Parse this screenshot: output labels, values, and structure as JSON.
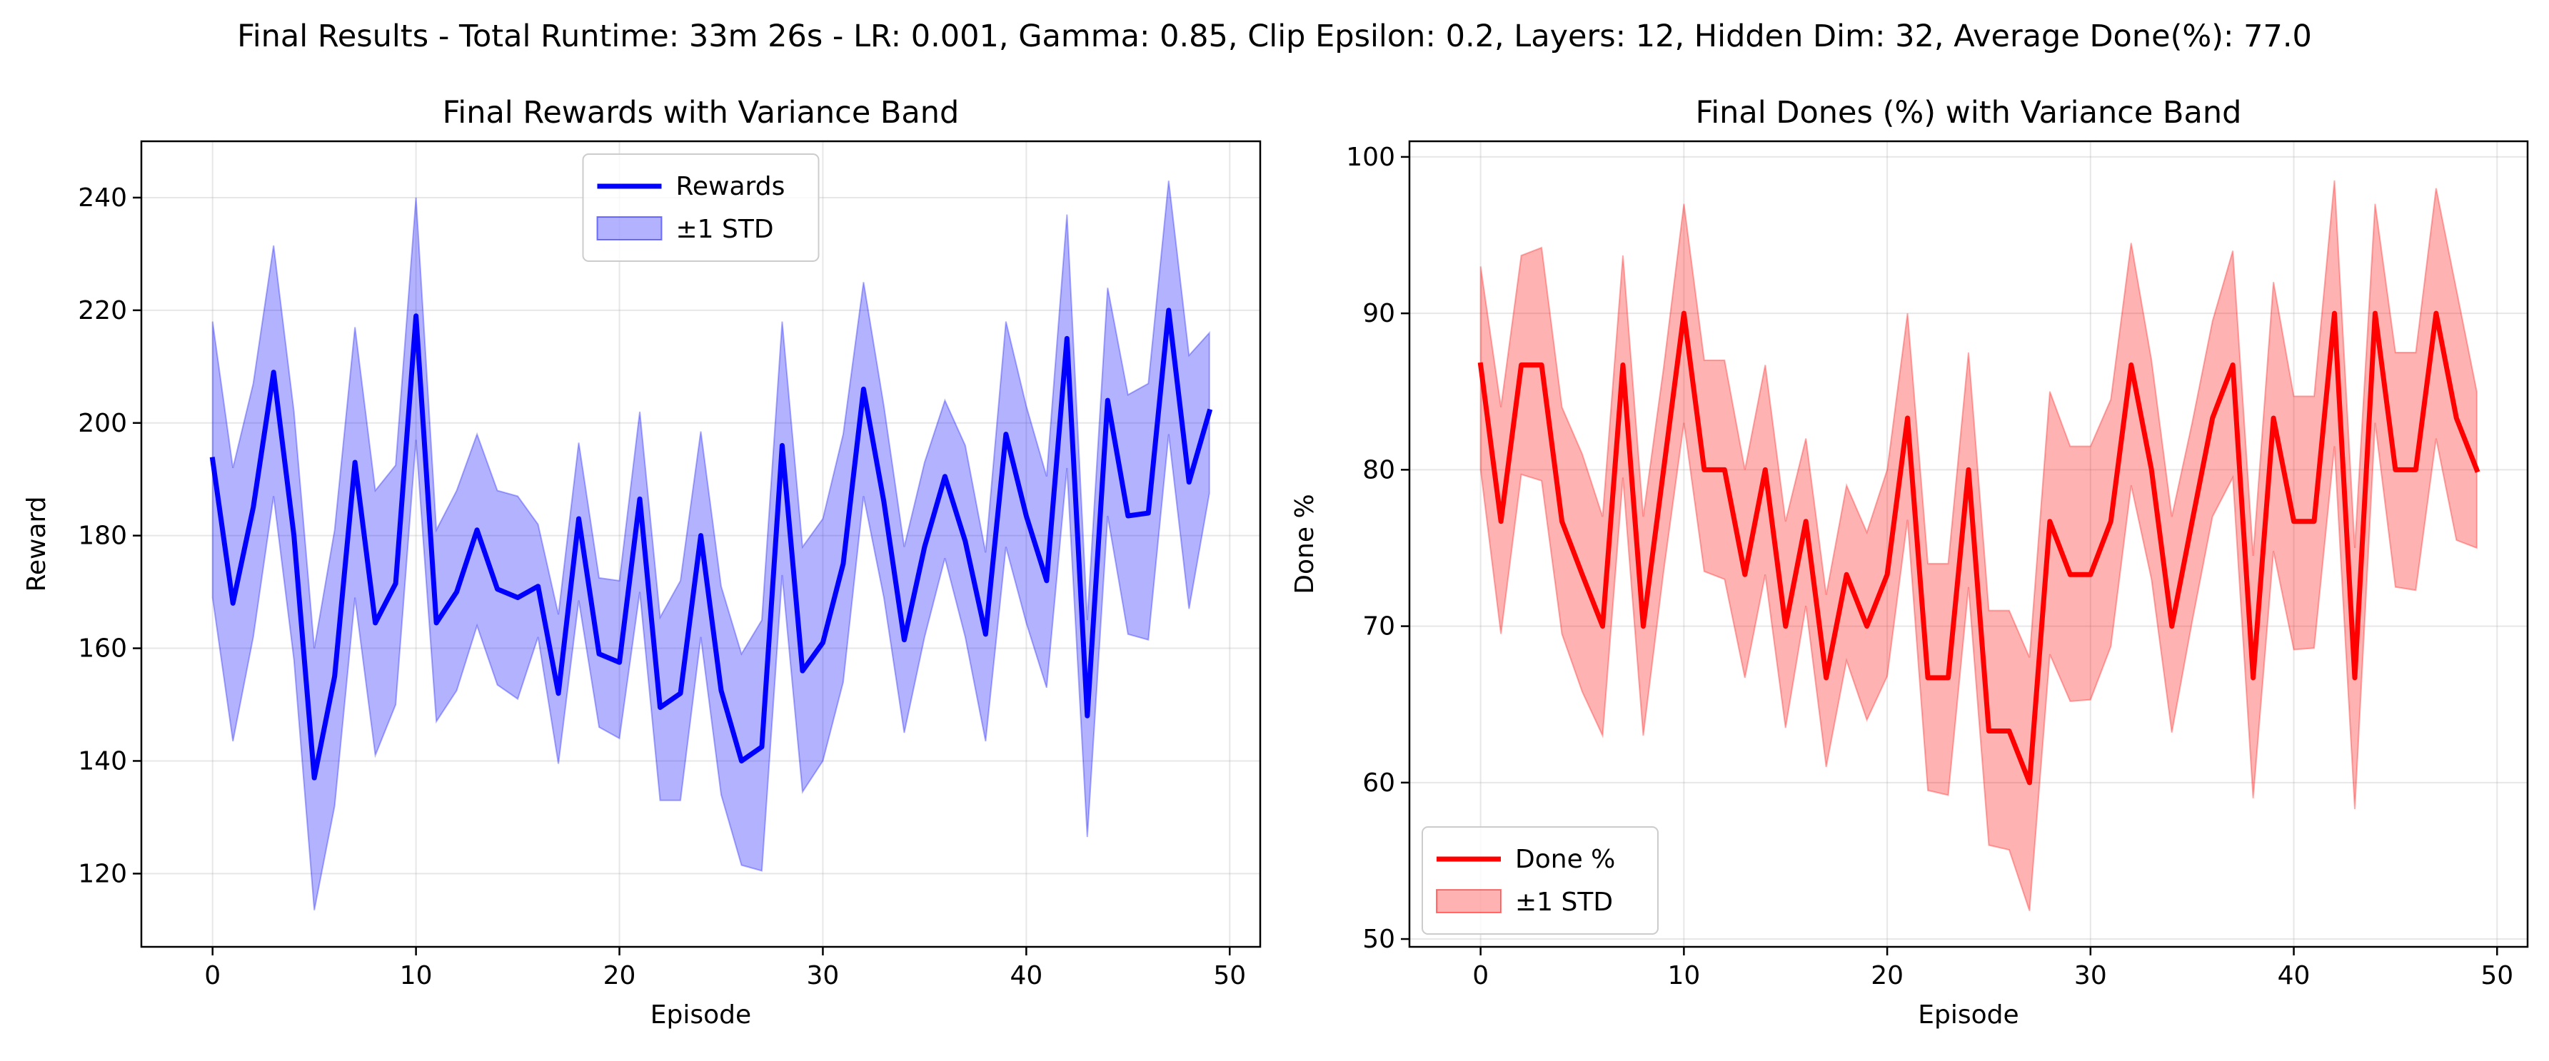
{
  "figure": {
    "suptitle": "Final Results - Total Runtime: 33m 26s - LR: 0.001, Gamma: 0.85, Clip Epsilon: 0.2, Layers: 12, Hidden Dim: 32, Average Done(%): 77.0"
  },
  "chart_data": [
    {
      "type": "line",
      "title": "Final Rewards with Variance Band",
      "xlabel": "Episode",
      "ylabel": "Reward",
      "xlim": [
        -3.5,
        51.5
      ],
      "ylim": [
        107,
        250
      ],
      "xticks": [
        0,
        10,
        20,
        30,
        40,
        50
      ],
      "yticks": [
        120,
        140,
        160,
        180,
        200,
        220,
        240
      ],
      "grid": true,
      "legend_position": "upper center",
      "line_color": "#0000ff",
      "band_color": "#0000ff",
      "series": [
        {
          "name": "Rewards",
          "x": [
            0,
            1,
            2,
            3,
            4,
            5,
            6,
            7,
            8,
            9,
            10,
            11,
            12,
            13,
            14,
            15,
            16,
            17,
            18,
            19,
            20,
            21,
            22,
            23,
            24,
            25,
            26,
            27,
            28,
            29,
            30,
            31,
            32,
            33,
            34,
            35,
            36,
            37,
            38,
            39,
            40,
            41,
            42,
            43,
            44,
            45,
            46,
            47,
            48,
            49
          ],
          "values": [
            193.5,
            168,
            185,
            209,
            180,
            137,
            155,
            193,
            164.5,
            171.5,
            219,
            164.5,
            170,
            181,
            170.5,
            169,
            171,
            152,
            183,
            159,
            157.5,
            186.5,
            149.5,
            152,
            180,
            152.5,
            140,
            142.5,
            196,
            156,
            161,
            175,
            206,
            186,
            161.5,
            178,
            190.5,
            179,
            162.5,
            198,
            183.5,
            172,
            215,
            148,
            204,
            183.5,
            184,
            220,
            189.5,
            202
          ]
        },
        {
          "name": "±1 STD",
          "upper": [
            218,
            192,
            207,
            231.5,
            202,
            160,
            181,
            217,
            188,
            192.5,
            240,
            181,
            188,
            198,
            188,
            187,
            182,
            166,
            196.5,
            172.5,
            172,
            202,
            165.5,
            172,
            198.5,
            171,
            159,
            165,
            218,
            178,
            183,
            198,
            225,
            203,
            178,
            193,
            204,
            196,
            177,
            218,
            203,
            190.5,
            237,
            165,
            224,
            205,
            207,
            243,
            212,
            216
          ],
          "lower": [
            169,
            143.5,
            162,
            187,
            158,
            113.5,
            132,
            169,
            141,
            150,
            197,
            147,
            152.5,
            164,
            153.5,
            151,
            162,
            139.5,
            168.5,
            146,
            144,
            170,
            133,
            133,
            162,
            134,
            121.5,
            120.5,
            173,
            134.5,
            140,
            154,
            187,
            169,
            145,
            162,
            176,
            162,
            143.5,
            178,
            164.5,
            153,
            192,
            126.5,
            183.5,
            162.5,
            161.5,
            198,
            167,
            187.5
          ]
        }
      ]
    },
    {
      "type": "line",
      "title": "Final Dones (%) with Variance Band",
      "xlabel": "Episode",
      "ylabel": "Done %",
      "xlim": [
        -3.5,
        51.5
      ],
      "ylim": [
        49.5,
        101
      ],
      "xticks": [
        0,
        10,
        20,
        30,
        40,
        50
      ],
      "yticks": [
        50,
        60,
        70,
        80,
        90,
        100
      ],
      "grid": true,
      "legend_position": "lower left",
      "line_color": "#ff0000",
      "band_color": "#ff0000",
      "series": [
        {
          "name": "Done %",
          "x": [
            0,
            1,
            2,
            3,
            4,
            5,
            6,
            7,
            8,
            9,
            10,
            11,
            12,
            13,
            14,
            15,
            16,
            17,
            18,
            19,
            20,
            21,
            22,
            23,
            24,
            25,
            26,
            27,
            28,
            29,
            30,
            31,
            32,
            33,
            34,
            35,
            36,
            37,
            38,
            39,
            40,
            41,
            42,
            43,
            44,
            45,
            46,
            47,
            48,
            49
          ],
          "values": [
            86.7,
            76.7,
            86.7,
            86.7,
            76.7,
            73.3,
            70,
            86.7,
            70,
            80,
            90,
            80,
            80,
            73.3,
            80,
            70,
            76.7,
            66.7,
            73.3,
            70,
            73.3,
            83.3,
            66.7,
            66.7,
            80,
            63.3,
            63.3,
            60,
            76.7,
            73.3,
            73.3,
            76.7,
            86.7,
            80,
            70,
            76.7,
            83.3,
            86.7,
            66.7,
            83.3,
            76.7,
            76.7,
            90,
            66.7,
            90,
            80,
            80,
            90,
            83.3,
            80
          ]
        },
        {
          "name": "±1 STD",
          "upper": [
            93,
            84,
            93.7,
            94.2,
            84,
            81,
            77,
            93.7,
            77,
            86.5,
            97,
            87,
            87,
            80,
            86.7,
            76.7,
            82,
            72,
            79,
            76,
            80,
            90,
            74,
            74,
            87.5,
            71,
            71,
            68,
            85,
            81.5,
            81.5,
            84.5,
            94.5,
            87,
            77,
            83,
            89.5,
            94,
            74.5,
            92,
            84.7,
            84.7,
            98.5,
            75,
            97,
            87.5,
            87.5,
            98,
            91.5,
            85
          ],
          "lower": [
            80,
            69.5,
            79.7,
            79.3,
            69.5,
            65.8,
            63,
            79.5,
            63,
            73.5,
            83,
            73.5,
            73,
            66.7,
            73.3,
            63.5,
            71.3,
            61,
            67.8,
            64,
            66.8,
            76.8,
            59.5,
            59.2,
            72.5,
            56,
            55.7,
            51.8,
            68.2,
            65.2,
            65.3,
            68.7,
            79,
            73,
            63.2,
            70.3,
            77,
            79.5,
            59,
            74.8,
            68.5,
            68.6,
            81.5,
            58.3,
            83,
            72.5,
            72.3,
            82,
            75.5,
            75
          ]
        }
      ]
    }
  ]
}
